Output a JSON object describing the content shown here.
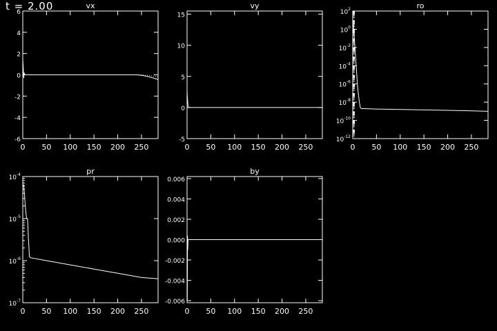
{
  "time_label": "t = 2.00",
  "colors": {
    "background": "#000000",
    "foreground": "#ffffff"
  },
  "chart_data": [
    {
      "type": "line",
      "title": "vx",
      "xlabel": "",
      "ylabel": "",
      "xlim": [
        0,
        285
      ],
      "ylim": [
        -6,
        6
      ],
      "yscale": "linear",
      "grid": false,
      "xticks": [
        {
          "v": 0,
          "t": "0"
        },
        {
          "v": 50,
          "t": "50"
        },
        {
          "v": 100,
          "t": "100"
        },
        {
          "v": 150,
          "t": "150"
        },
        {
          "v": 200,
          "t": "200"
        },
        {
          "v": 250,
          "t": "250"
        }
      ],
      "yticks": [
        {
          "v": -6,
          "t": "-6"
        },
        {
          "v": -4,
          "t": "-4"
        },
        {
          "v": -2,
          "t": "-2"
        },
        {
          "v": 0,
          "t": "0"
        },
        {
          "v": 2,
          "t": "2"
        },
        {
          "v": 4,
          "t": "4"
        },
        {
          "v": 6,
          "t": "6"
        }
      ],
      "series": [
        {
          "style": "solid",
          "x": [
            0,
            1,
            2,
            3,
            4,
            10,
            240,
            250,
            262,
            275,
            285
          ],
          "y": [
            1.5,
            0.6,
            -0.3,
            0.2,
            0,
            0,
            0,
            -0.05,
            -0.15,
            -0.3,
            -0.45
          ]
        },
        {
          "style": "dotted",
          "x": [
            240,
            250,
            262,
            275,
            285
          ],
          "y": [
            0,
            0,
            -0.05,
            -0.12,
            -0.2
          ]
        }
      ]
    },
    {
      "type": "line",
      "title": "vy",
      "xlabel": "",
      "ylabel": "",
      "xlim": [
        0,
        285
      ],
      "ylim": [
        -5,
        15.5
      ],
      "yscale": "linear",
      "grid": false,
      "xticks": [
        {
          "v": 0,
          "t": "0"
        },
        {
          "v": 50,
          "t": "50"
        },
        {
          "v": 100,
          "t": "100"
        },
        {
          "v": 150,
          "t": "150"
        },
        {
          "v": 200,
          "t": "200"
        },
        {
          "v": 250,
          "t": "250"
        }
      ],
      "yticks": [
        {
          "v": -5,
          "t": "-5"
        },
        {
          "v": 0,
          "t": "0"
        },
        {
          "v": 5,
          "t": "5"
        },
        {
          "v": 10,
          "t": "10"
        },
        {
          "v": 15,
          "t": "15"
        }
      ],
      "series": [
        {
          "style": "solid",
          "x": [
            0,
            1,
            2,
            3,
            285
          ],
          "y": [
            2.5,
            1.2,
            0.3,
            0,
            0
          ]
        }
      ]
    },
    {
      "type": "line",
      "title": "ro",
      "xlabel": "",
      "ylabel": "",
      "xlim": [
        0,
        285
      ],
      "ylim": [
        -12,
        2
      ],
      "yscale": "log",
      "grid": false,
      "xticks": [
        {
          "v": 0,
          "t": "0"
        },
        {
          "v": 50,
          "t": "50"
        },
        {
          "v": 100,
          "t": "100"
        },
        {
          "v": 150,
          "t": "150"
        },
        {
          "v": 200,
          "t": "200"
        },
        {
          "v": 250,
          "t": "250"
        }
      ],
      "yticks": [
        {
          "v": 2,
          "b": "10",
          "e": "2"
        },
        {
          "v": 0,
          "b": "10",
          "e": "0"
        },
        {
          "v": -2,
          "b": "10",
          "e": "-2"
        },
        {
          "v": -4,
          "b": "10",
          "e": "-4"
        },
        {
          "v": -6,
          "b": "10",
          "e": "-6"
        },
        {
          "v": -8,
          "b": "10",
          "e": "-8"
        },
        {
          "v": -10,
          "b": "10",
          "e": "-10"
        },
        {
          "v": -12,
          "b": "10",
          "e": "-12"
        }
      ],
      "series": [
        {
          "style": "solid",
          "x": [
            0,
            1,
            2,
            4,
            6,
            8,
            10,
            12,
            14,
            16,
            18,
            50,
            100,
            150,
            200,
            250,
            285
          ],
          "y": [
            0.2,
            0.6,
            0,
            -1.5,
            -3,
            -4.6,
            -6.2,
            -7.2,
            -8,
            -8.6,
            -8.7,
            -8.75,
            -8.8,
            -8.85,
            -8.9,
            -8.95,
            -9.0
          ]
        }
      ]
    },
    {
      "type": "line",
      "title": "pr",
      "xlabel": "",
      "ylabel": "",
      "xlim": [
        0,
        285
      ],
      "ylim": [
        -7,
        -4
      ],
      "yscale": "log",
      "grid": false,
      "xticks": [
        {
          "v": 0,
          "t": "0"
        },
        {
          "v": 50,
          "t": "50"
        },
        {
          "v": 100,
          "t": "100"
        },
        {
          "v": 150,
          "t": "150"
        },
        {
          "v": 200,
          "t": "200"
        },
        {
          "v": 250,
          "t": "250"
        }
      ],
      "yticks": [
        {
          "v": -4,
          "b": "10",
          "e": "-4"
        },
        {
          "v": -5,
          "b": "10",
          "e": "-5"
        },
        {
          "v": -6,
          "b": "10",
          "e": "-6"
        },
        {
          "v": -7,
          "b": "10",
          "e": "-7"
        }
      ],
      "series": [
        {
          "style": "solid",
          "x": [
            0,
            2,
            4,
            6,
            8,
            10,
            12,
            14,
            16,
            50,
            100,
            150,
            200,
            250,
            285
          ],
          "y": [
            -4.2,
            -4.2,
            -4.5,
            -4.8,
            -5.0,
            -5.0,
            -5.5,
            -5.9,
            -5.93,
            -6.0,
            -6.1,
            -6.2,
            -6.3,
            -6.4,
            -6.43
          ]
        }
      ]
    },
    {
      "type": "line",
      "title": "by",
      "xlabel": "",
      "ylabel": "",
      "xlim": [
        0,
        285
      ],
      "ylim": [
        -0.0062,
        0.0062
      ],
      "yscale": "linear",
      "grid": false,
      "xticks": [
        {
          "v": 0,
          "t": "0"
        },
        {
          "v": 50,
          "t": "50"
        },
        {
          "v": 100,
          "t": "100"
        },
        {
          "v": 150,
          "t": "150"
        },
        {
          "v": 200,
          "t": "200"
        },
        {
          "v": 250,
          "t": "250"
        }
      ],
      "yticks": [
        {
          "v": -0.006,
          "t": "-0.006"
        },
        {
          "v": -0.004,
          "t": "-0.004"
        },
        {
          "v": -0.002,
          "t": "-0.002"
        },
        {
          "v": 0,
          "t": "0.000"
        },
        {
          "v": 0.002,
          "t": "0.002"
        },
        {
          "v": 0.004,
          "t": "0.004"
        },
        {
          "v": 0.006,
          "t": "0.006"
        }
      ],
      "series": [
        {
          "style": "solid",
          "x": [
            0,
            0.5,
            1,
            1.5,
            2,
            3,
            285
          ],
          "y": [
            0.0005,
            -0.006,
            0.0004,
            -0.001,
            0,
            0,
            0
          ]
        }
      ]
    }
  ]
}
